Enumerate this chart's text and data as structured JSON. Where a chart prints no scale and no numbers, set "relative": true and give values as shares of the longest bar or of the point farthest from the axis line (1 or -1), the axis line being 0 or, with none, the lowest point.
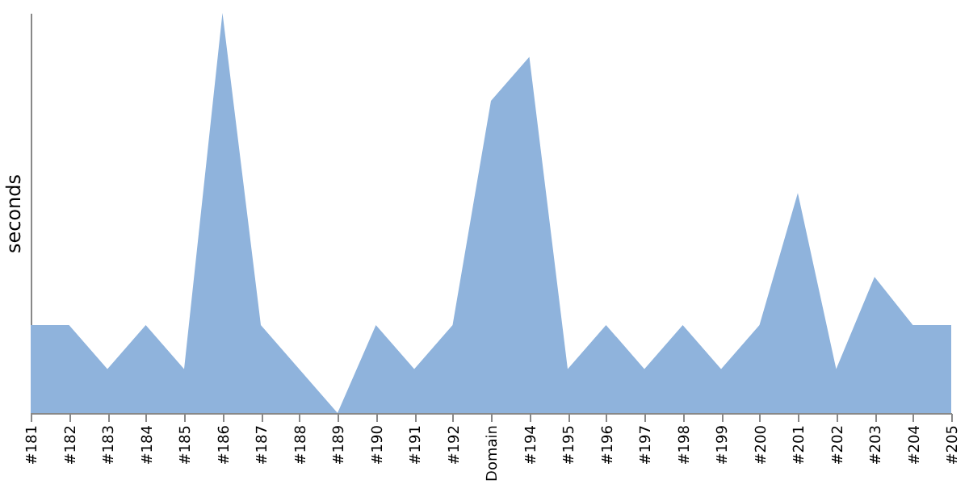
{
  "chart_data": {
    "type": "area",
    "ylabel": "seconds",
    "relative": true,
    "color": "#8fb3dc",
    "categories": [
      "#181",
      "#182",
      "#183",
      "#184",
      "#185",
      "#186",
      "#187",
      "#188",
      "#189",
      "#190",
      "#191",
      "#192",
      "Domain",
      "#194",
      "#195",
      "#196",
      "#197",
      "#198",
      "#199",
      "#200",
      "#201",
      "#202",
      "#203",
      "#204",
      "#205"
    ],
    "values": [
      0.22,
      0.22,
      0.11,
      0.22,
      0.11,
      1,
      0.22,
      0.11,
      0,
      0.22,
      0.11,
      0.22,
      0.78,
      0.89,
      0.11,
      0.22,
      0.11,
      0.22,
      0.11,
      0.22,
      0.55,
      0.11,
      0.34,
      0.22,
      0.22
    ]
  }
}
